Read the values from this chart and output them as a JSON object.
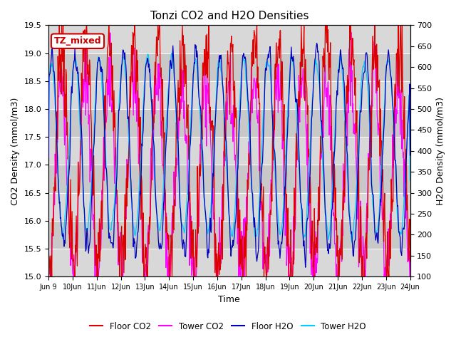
{
  "title": "Tonzi CO2 and H2O Densities",
  "xlabel": "Time",
  "ylabel_left": "CO2 Density (mmol/m3)",
  "ylabel_right": "H2O Density (mmol/m3)",
  "ylim_left": [
    15.0,
    19.5
  ],
  "ylim_right": [
    100,
    700
  ],
  "yticks_left": [
    15.0,
    15.5,
    16.0,
    16.5,
    17.0,
    17.5,
    18.0,
    18.5,
    19.0,
    19.5
  ],
  "yticks_right": [
    100,
    150,
    200,
    250,
    300,
    350,
    400,
    450,
    500,
    550,
    600,
    650,
    700
  ],
  "annotation": "TZ_mixed",
  "annotation_fgcolor": "#cc0000",
  "annotation_bgcolor": "white",
  "legend_entries": [
    "Floor CO2",
    "Tower CO2",
    "Floor H2O",
    "Tower H2O"
  ],
  "legend_colors": [
    "#dd0000",
    "#ff00ff",
    "#0000bb",
    "#00ccff"
  ],
  "band_colors": [
    "#d8d8d8",
    "#c8c8c8"
  ],
  "num_days": 16,
  "n_points_per_day": 48,
  "seed": 7
}
